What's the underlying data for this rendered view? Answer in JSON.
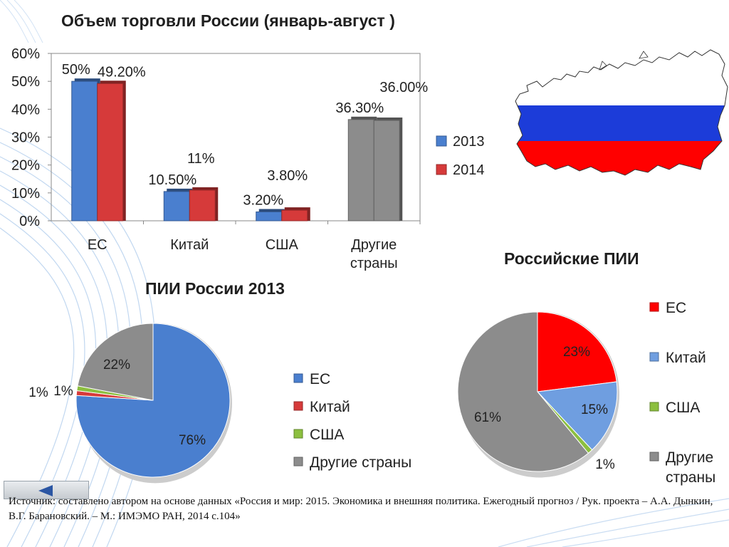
{
  "colors": {
    "blue": "#4a7fcf",
    "red": "#d63a3a",
    "pure_red": "#ff0000",
    "green": "#8cbf3f",
    "gray": "#8c8c8c",
    "pale_blue": "#6f9ee0",
    "flag_white": "#ffffff",
    "flag_blue": "#1c3cd9",
    "flag_red": "#ff0000"
  },
  "chart_data": [
    {
      "type": "bar",
      "title": "Объем торговли России (январь-август )",
      "categories": [
        "ЕС",
        "Китай",
        "США",
        "Другие страны"
      ],
      "ylim": [
        0,
        0.6
      ],
      "y_ticks": [
        "0%",
        "10%",
        "20%",
        "30%",
        "40%",
        "50%",
        "60%"
      ],
      "legend_position": "right",
      "series": [
        {
          "name": "2013",
          "values": [
            0.5,
            0.105,
            0.032,
            0.363
          ],
          "labels": [
            "50%",
            "10.50%",
            "3.20%",
            "36.30%"
          ]
        },
        {
          "name": "2014",
          "values": [
            0.492,
            0.11,
            0.038,
            0.36
          ],
          "labels": [
            "49.20%",
            "11%",
            "3.80%",
            "36.00%"
          ]
        }
      ]
    },
    {
      "type": "pie",
      "title": "ПИИ России 2013",
      "legend_position": "right",
      "slices": [
        {
          "name": "ЕС",
          "value": 76,
          "label": "76%"
        },
        {
          "name": "Китай",
          "value": 1,
          "label": "1%"
        },
        {
          "name": "США",
          "value": 1,
          "label": "1%"
        },
        {
          "name": "Другие страны",
          "value": 22,
          "label": "22%"
        }
      ]
    },
    {
      "type": "pie",
      "title": "Российские ПИИ",
      "legend_position": "right",
      "slices": [
        {
          "name": "ЕС",
          "value": 23,
          "label": "23%"
        },
        {
          "name": "Китай",
          "value": 15,
          "label": "15%"
        },
        {
          "name": "США",
          "value": 1,
          "label": "1%"
        },
        {
          "name": "Другие страны",
          "value": 61,
          "label": "61%"
        }
      ]
    }
  ],
  "source_text": "Источник: составлено автором на основе данных «Россия и мир: 2015. Экономика и внешняя политика. Ежегодный прогноз / Рук. проекта – А.А. Дынкин, В.Г. Барановский. – М.: ИМЭМО РАН, 2014 с.104»"
}
